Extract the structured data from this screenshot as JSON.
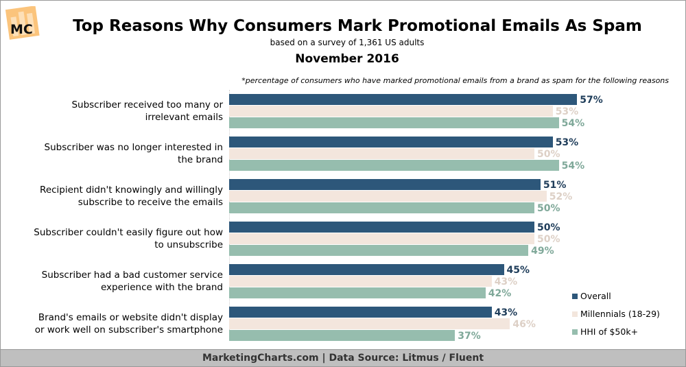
{
  "logo": "MC",
  "chart_data": {
    "type": "bar",
    "orientation": "horizontal",
    "title": "Top Reasons Why Consumers Mark Promotional Emails As Spam",
    "subtitle": "based on a survey of 1,361 US adults",
    "date": "November 2016",
    "note": "*percentage of consumers who have marked promotional emails from a brand as spam for the following reasons",
    "categories": [
      [
        "Subscriber received too many or",
        "irrelevant emails"
      ],
      [
        "Subscriber was no longer interested in",
        "the brand"
      ],
      [
        "Recipient didn't knowingly and willingly",
        "subscribe to receive the emails"
      ],
      [
        "Subscriber couldn't easily figure out how",
        "to unsubscribe"
      ],
      [
        "Subscriber had a bad customer service",
        "experience with the brand"
      ],
      [
        "Brand's emails or website didn't display",
        "or work well on subscriber's smartphone"
      ]
    ],
    "series": [
      {
        "name": "Overall",
        "color": "#2d577a",
        "label_color": "#1f3d5a",
        "values": [
          57,
          53,
          51,
          50,
          45,
          43
        ]
      },
      {
        "name": "Millennials (18-29)",
        "color": "#f3e6dd",
        "label_color": "#ddd0c6",
        "values": [
          53,
          50,
          52,
          50,
          43,
          46
        ]
      },
      {
        "name": "HHI of $50k+",
        "color": "#96bdae",
        "label_color": "#7fa899",
        "values": [
          54,
          54,
          50,
          49,
          42,
          37
        ]
      }
    ],
    "value_suffix": "%",
    "legend": "bottom-right",
    "grid": false
  },
  "footer": "MarketingCharts.com | Data Source: Litmus / Fluent"
}
